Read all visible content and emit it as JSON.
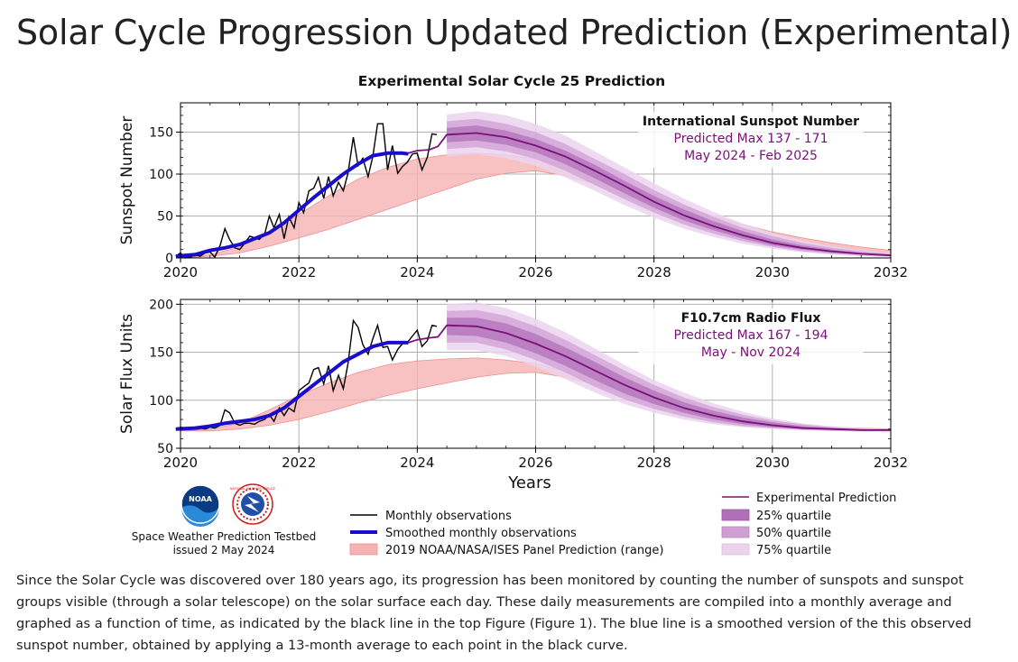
{
  "page": {
    "title": "Solar Cycle Progression Updated Prediction (Experimental)",
    "caption": "Since the Solar Cycle was discovered over 180 years ago, its progression has been monitored by counting the number of sunspots and sunspot groups visible (through a solar telescope) on the solar surface each day.  These daily measurements are compiled into a monthly average and graphed as a function of time, as indicated by the black line in the top Figure (Figure 1).  The blue line is a smoothed version of the this observed sunspot number, obtained by applying a 13-month average to each point in the black curve."
  },
  "figure": {
    "suptitle": "Experimental Solar Cycle 25 Prediction",
    "xlabel": "Years",
    "footer_org": "Space Weather Prediction Testbed",
    "footer_issued": "issued 2 May 2024",
    "logo_left_text": "NOAA",
    "logo_right_text": "NATIONAL WEATHER SERVICE"
  },
  "legend": {
    "monthly": "Monthly observations",
    "smoothed": "Smoothed monthly observations",
    "panel": "2019 NOAA/NASA/ISES Panel Prediction (range)",
    "experimental": "Experimental Prediction",
    "q25": "25% quartile",
    "q50": "50% quartile",
    "q75": "75% quartile"
  },
  "colors": {
    "monthly": "#000000",
    "smoothed": "#1a0ccc",
    "panel_fill": "#f6b3b3",
    "panel_edge": "#ee8f8f",
    "experimental": "#7a107a",
    "q25": "#b070b8",
    "q50": "#cf9fd4",
    "q75": "#ebd3ee"
  },
  "chart_data": [
    {
      "type": "line",
      "ylabel": "Sunspot Number",
      "xlim": [
        2020,
        2032
      ],
      "ylim": [
        0,
        185
      ],
      "xticks": [
        2020,
        2022,
        2024,
        2026,
        2028,
        2030,
        2032
      ],
      "yticks": [
        0,
        50,
        100,
        150
      ],
      "grid": true,
      "annotation": {
        "title": "International Sunspot Number",
        "line1": "Predicted Max 137 - 171",
        "line2": "May 2024 - Feb 2025"
      },
      "monthly": {
        "x": [
          2019.92,
          2020.0,
          2020.08,
          2020.17,
          2020.25,
          2020.33,
          2020.42,
          2020.5,
          2020.58,
          2020.67,
          2020.75,
          2020.83,
          2020.92,
          2021.0,
          2021.08,
          2021.17,
          2021.25,
          2021.33,
          2021.42,
          2021.5,
          2021.58,
          2021.67,
          2021.75,
          2021.83,
          2021.92,
          2022.0,
          2022.08,
          2022.17,
          2022.25,
          2022.33,
          2022.42,
          2022.5,
          2022.58,
          2022.67,
          2022.75,
          2022.83,
          2022.92,
          2023.0,
          2023.08,
          2023.17,
          2023.25,
          2023.33,
          2023.42,
          2023.5,
          2023.58,
          2023.67,
          2023.75,
          2023.83,
          2023.92,
          2024.0,
          2024.08,
          2024.17,
          2024.25,
          2024.33
        ],
        "y": [
          2,
          6,
          0,
          1,
          4,
          2,
          6,
          7,
          1,
          15,
          35,
          22,
          12,
          10,
          17,
          26,
          24,
          22,
          28,
          50,
          36,
          52,
          23,
          49,
          36,
          66,
          54,
          80,
          83,
          96,
          71,
          97,
          74,
          90,
          80,
          101,
          144,
          110,
          119,
          97,
          121,
          160,
          160,
          105,
          134,
          101,
          109,
          114,
          124,
          125,
          105,
          120,
          148,
          147
        ]
      },
      "smoothed": {
        "x": [
          2019.92,
          2020.25,
          2020.5,
          2020.75,
          2021.0,
          2021.25,
          2021.5,
          2021.75,
          2022.0,
          2022.25,
          2022.5,
          2022.75,
          2023.0,
          2023.25,
          2023.5,
          2023.75,
          2023.85
        ],
        "y": [
          2,
          4,
          9,
          12,
          16,
          23,
          30,
          42,
          57,
          72,
          86,
          100,
          112,
          122,
          125,
          125,
          124
        ]
      },
      "panel_range": {
        "x": [
          2020.0,
          2020.5,
          2021.0,
          2021.5,
          2022.0,
          2022.5,
          2023.0,
          2023.5,
          2024.0,
          2024.5,
          2025.0,
          2025.5,
          2026.0,
          2026.5,
          2027.0,
          2027.5,
          2028.0,
          2028.5,
          2029.0,
          2029.5,
          2030.0,
          2030.5,
          2031.0,
          2031.5,
          2032.0
        ],
        "lower": [
          0,
          2,
          6,
          14,
          24,
          34,
          46,
          58,
          70,
          82,
          94,
          101,
          104,
          98,
          88,
          74,
          60,
          47,
          36,
          27,
          19,
          12,
          8,
          5,
          3
        ],
        "upper": [
          0,
          4,
          13,
          30,
          52,
          74,
          94,
          108,
          118,
          123,
          125,
          123,
          118,
          111,
          100,
          87,
          74,
          62,
          50,
          40,
          31,
          24,
          18,
          13,
          9
        ]
      },
      "experimental": {
        "x": [
          2023.85,
          2024.0,
          2024.2,
          2024.35,
          2024.5,
          2025.0,
          2025.5,
          2026.0,
          2026.5,
          2027.0,
          2027.5,
          2028.0,
          2028.5,
          2029.0,
          2029.5,
          2030.0,
          2030.5,
          2031.0,
          2031.5,
          2032.0
        ],
        "y": [
          125,
          128,
          129,
          133,
          147,
          149,
          144,
          134,
          121,
          104,
          86,
          67,
          51,
          38,
          27,
          18,
          12,
          8,
          5,
          3
        ],
        "q25_low": [
          138,
          140,
          135,
          126,
          112,
          95,
          77,
          60,
          45,
          33,
          23,
          15,
          10,
          6,
          4,
          2
        ],
        "q25_high": [
          155,
          158,
          152,
          142,
          128,
          111,
          92,
          74,
          58,
          44,
          32,
          22,
          15,
          10,
          6,
          4
        ],
        "q50_low": [
          130,
          132,
          127,
          118,
          104,
          87,
          70,
          54,
          40,
          29,
          20,
          13,
          8,
          5,
          3,
          2
        ],
        "q50_high": [
          163,
          166,
          160,
          150,
          136,
          118,
          100,
          81,
          64,
          49,
          36,
          26,
          18,
          12,
          8,
          5
        ],
        "q75_low": [
          121,
          124,
          119,
          110,
          96,
          80,
          63,
          48,
          35,
          25,
          17,
          11,
          7,
          4,
          2,
          1
        ],
        "q75_high": [
          171,
          175,
          170,
          160,
          146,
          127,
          108,
          89,
          71,
          55,
          41,
          30,
          21,
          14,
          9,
          6
        ]
      }
    },
    {
      "type": "line",
      "ylabel": "Solar Flux Units",
      "xlim": [
        2020,
        2032
      ],
      "ylim": [
        50,
        205
      ],
      "xticks": [
        2020,
        2022,
        2024,
        2026,
        2028,
        2030,
        2032
      ],
      "yticks": [
        50,
        100,
        150,
        200
      ],
      "grid": true,
      "annotation": {
        "title": "F10.7cm Radio Flux",
        "line1": "Predicted Max 167 - 194",
        "line2": "May - Nov 2024"
      },
      "monthly": {
        "x": [
          2019.92,
          2020.0,
          2020.08,
          2020.17,
          2020.25,
          2020.33,
          2020.42,
          2020.5,
          2020.58,
          2020.67,
          2020.75,
          2020.83,
          2020.92,
          2021.0,
          2021.08,
          2021.17,
          2021.25,
          2021.33,
          2021.42,
          2021.5,
          2021.58,
          2021.67,
          2021.75,
          2021.83,
          2021.92,
          2022.0,
          2022.08,
          2022.17,
          2022.25,
          2022.33,
          2022.42,
          2022.5,
          2022.58,
          2022.67,
          2022.75,
          2022.83,
          2022.92,
          2023.0,
          2023.08,
          2023.17,
          2023.25,
          2023.33,
          2023.42,
          2023.5,
          2023.58,
          2023.67,
          2023.75,
          2023.83,
          2023.92,
          2024.0,
          2024.08,
          2024.17,
          2024.25,
          2024.33
        ],
        "y": [
          70,
          72,
          71,
          70,
          70,
          71,
          70,
          72,
          71,
          74,
          90,
          87,
          76,
          74,
          76,
          76,
          75,
          78,
          80,
          85,
          78,
          92,
          84,
          92,
          88,
          110,
          114,
          118,
          132,
          134,
          117,
          136,
          110,
          126,
          112,
          138,
          183,
          176,
          158,
          148,
          164,
          178,
          155,
          156,
          142,
          153,
          159,
          160,
          167,
          173,
          156,
          162,
          178,
          177
        ]
      },
      "smoothed": {
        "x": [
          2019.92,
          2020.25,
          2020.5,
          2020.75,
          2021.0,
          2021.25,
          2021.5,
          2021.75,
          2022.0,
          2022.25,
          2022.5,
          2022.75,
          2023.0,
          2023.25,
          2023.5,
          2023.75,
          2023.85
        ],
        "y": [
          70,
          71,
          73,
          76,
          78,
          80,
          84,
          92,
          104,
          116,
          128,
          140,
          148,
          156,
          160,
          160,
          160
        ]
      },
      "panel_range": {
        "x": [
          2020.0,
          2020.5,
          2021.0,
          2021.5,
          2022.0,
          2022.5,
          2023.0,
          2023.5,
          2024.0,
          2024.5,
          2025.0,
          2025.5,
          2026.0,
          2026.5,
          2027.0,
          2027.5,
          2028.0,
          2028.5,
          2029.0,
          2029.5,
          2030.0,
          2030.5,
          2031.0,
          2031.5,
          2032.0
        ],
        "lower": [
          68,
          68,
          70,
          74,
          80,
          88,
          97,
          105,
          112,
          118,
          124,
          128,
          129,
          124,
          116,
          106,
          96,
          88,
          82,
          77,
          74,
          72,
          70,
          69,
          68
        ],
        "upper": [
          68,
          70,
          76,
          90,
          105,
          118,
          129,
          137,
          141,
          143,
          144,
          142,
          138,
          130,
          120,
          108,
          98,
          90,
          84,
          79,
          76,
          74,
          72,
          71,
          70
        ]
      },
      "experimental": {
        "x": [
          2023.85,
          2024.0,
          2024.2,
          2024.35,
          2024.5,
          2025.0,
          2025.5,
          2026.0,
          2026.5,
          2027.0,
          2027.5,
          2028.0,
          2028.5,
          2029.0,
          2029.5,
          2030.0,
          2030.5,
          2031.0,
          2031.5,
          2032.0
        ],
        "y": [
          160,
          163,
          165,
          166,
          178,
          177,
          170,
          159,
          146,
          131,
          116,
          103,
          92,
          84,
          78,
          74,
          71,
          70,
          69,
          69
        ],
        "q25_low": [
          168,
          167,
          160,
          149,
          136,
          121,
          107,
          96,
          87,
          80,
          75,
          72,
          70,
          69,
          68,
          68
        ],
        "q25_high": [
          186,
          186,
          180,
          169,
          155,
          140,
          124,
          110,
          98,
          89,
          82,
          77,
          73,
          71,
          70,
          69
        ],
        "q50_low": [
          160,
          160,
          153,
          142,
          129,
          114,
          101,
          91,
          83,
          77,
          73,
          71,
          69,
          68,
          68,
          68
        ],
        "q50_high": [
          193,
          194,
          188,
          177,
          163,
          147,
          131,
          116,
          103,
          93,
          85,
          79,
          75,
          72,
          70,
          69
        ],
        "q75_low": [
          152,
          152,
          146,
          135,
          122,
          108,
          96,
          87,
          80,
          75,
          72,
          70,
          69,
          68,
          67,
          67
        ],
        "q75_high": [
          200,
          202,
          196,
          185,
          171,
          154,
          137,
          121,
          108,
          97,
          88,
          81,
          76,
          73,
          71,
          70
        ]
      }
    }
  ]
}
